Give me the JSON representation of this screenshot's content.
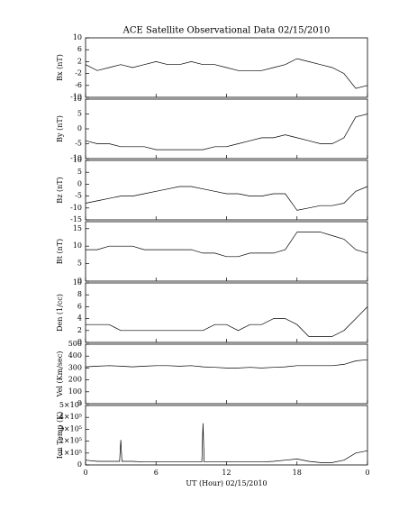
{
  "chart_data": [
    {
      "type": "line",
      "title": "ACE Satellite Observational Data   02/15/2010",
      "ylabel": "Bx (nT)",
      "xlim": [
        0,
        24
      ],
      "ylim": [
        -10,
        10
      ],
      "yticks": [
        10,
        6,
        2,
        -2,
        -6,
        -10
      ],
      "x": [
        0,
        1,
        2,
        3,
        4,
        5,
        6,
        7,
        8,
        9,
        10,
        11,
        12,
        13,
        14,
        15,
        16,
        17,
        18,
        19,
        20,
        21,
        22,
        23,
        24
      ],
      "values": [
        1,
        -1,
        0,
        1,
        0,
        1,
        2,
        1,
        1,
        2,
        1,
        1,
        0,
        -1,
        -1,
        -1,
        0,
        1,
        3,
        2,
        1,
        0,
        -2,
        -7,
        -6
      ]
    },
    {
      "type": "line",
      "ylabel": "By (nT)",
      "xlim": [
        0,
        24
      ],
      "ylim": [
        -10,
        10
      ],
      "yticks": [
        10,
        5,
        0,
        -5,
        -10
      ],
      "x": [
        0,
        1,
        2,
        3,
        4,
        5,
        6,
        7,
        8,
        9,
        10,
        11,
        12,
        13,
        14,
        15,
        16,
        17,
        18,
        19,
        20,
        21,
        22,
        23,
        24
      ],
      "values": [
        -4,
        -5,
        -5,
        -6,
        -6,
        -6,
        -7,
        -7,
        -7,
        -7,
        -7,
        -6,
        -6,
        -5,
        -4,
        -3,
        -3,
        -2,
        -3,
        -4,
        -5,
        -5,
        -3,
        4,
        5
      ]
    },
    {
      "type": "line",
      "ylabel": "Bz (nT)",
      "xlim": [
        0,
        24
      ],
      "ylim": [
        -15,
        10
      ],
      "yticks": [
        10,
        5,
        0,
        -5,
        -10,
        -15
      ],
      "x": [
        0,
        1,
        2,
        3,
        4,
        5,
        6,
        7,
        8,
        9,
        10,
        11,
        12,
        13,
        14,
        15,
        16,
        17,
        18,
        19,
        20,
        21,
        22,
        23,
        24
      ],
      "values": [
        -8,
        -7,
        -6,
        -5,
        -5,
        -4,
        -3,
        -2,
        -1,
        -1,
        -2,
        -3,
        -4,
        -4,
        -5,
        -5,
        -4,
        -4,
        -11,
        -10,
        -9,
        -9,
        -8,
        -3,
        -1
      ]
    },
    {
      "type": "line",
      "ylabel": "Bt (nT)",
      "xlim": [
        0,
        24
      ],
      "ylim": [
        0,
        17
      ],
      "yticks": [
        15,
        10,
        5,
        0
      ],
      "x": [
        0,
        1,
        2,
        3,
        4,
        5,
        6,
        7,
        8,
        9,
        10,
        11,
        12,
        13,
        14,
        15,
        16,
        17,
        18,
        19,
        20,
        21,
        22,
        23,
        24
      ],
      "values": [
        9,
        9,
        10,
        10,
        10,
        9,
        9,
        9,
        9,
        9,
        8,
        8,
        7,
        7,
        8,
        8,
        8,
        9,
        14,
        14,
        14,
        13,
        12,
        9,
        8
      ]
    },
    {
      "type": "line",
      "ylabel": "Den (1/cc)",
      "xlim": [
        0,
        24
      ],
      "ylim": [
        0,
        10
      ],
      "yticks": [
        10,
        8,
        6,
        4,
        2,
        0
      ],
      "x": [
        0,
        1,
        2,
        3,
        4,
        5,
        6,
        7,
        8,
        9,
        10,
        11,
        12,
        13,
        14,
        15,
        16,
        17,
        18,
        19,
        20,
        21,
        22,
        23,
        24
      ],
      "values": [
        3,
        3,
        3,
        2,
        2,
        2,
        2,
        2,
        2,
        2,
        2,
        3,
        3,
        2,
        3,
        3,
        4,
        4,
        3,
        1,
        1,
        1,
        2,
        4,
        6
      ]
    },
    {
      "type": "line",
      "ylabel": "Vel (Km/sec)",
      "xlim": [
        0,
        24
      ],
      "ylim": [
        0,
        500
      ],
      "yticks": [
        500,
        400,
        300,
        200,
        100,
        0
      ],
      "x": [
        0,
        1,
        2,
        3,
        4,
        5,
        6,
        7,
        8,
        9,
        10,
        11,
        12,
        13,
        14,
        15,
        16,
        17,
        18,
        19,
        20,
        21,
        22,
        23,
        24
      ],
      "values": [
        310,
        315,
        320,
        315,
        310,
        315,
        320,
        320,
        315,
        320,
        310,
        305,
        300,
        300,
        305,
        300,
        305,
        310,
        320,
        320,
        320,
        320,
        330,
        360,
        370
      ]
    },
    {
      "type": "line",
      "ylabel": "Ion Temp (K)",
      "xlabel": "UT (Hour)  02/15/2010",
      "xlim": [
        0,
        24
      ],
      "ylim": [
        0,
        500000
      ],
      "yticks": [
        {
          "value": 500000,
          "label": "5×10⁵"
        },
        {
          "value": 400000,
          "label": "4×10⁵"
        },
        {
          "value": 300000,
          "label": "3×10⁵"
        },
        {
          "value": 200000,
          "label": "2×10⁵"
        },
        {
          "value": 100000,
          "label": "1×10⁵"
        },
        0
      ],
      "xticks": [
        0,
        6,
        12,
        18,
        {
          "value": 24,
          "label": "0"
        }
      ],
      "x": [
        0,
        1,
        2,
        2.9,
        3,
        3.1,
        4,
        5,
        6,
        7,
        8,
        9,
        9.9,
        10,
        10.1,
        11,
        12,
        13,
        14,
        15,
        16,
        17,
        18,
        19,
        20,
        21,
        22,
        23,
        24
      ],
      "values": [
        40000,
        30000,
        30000,
        30000,
        210000,
        30000,
        30000,
        25000,
        25000,
        25000,
        25000,
        25000,
        25000,
        350000,
        25000,
        25000,
        25000,
        25000,
        25000,
        25000,
        30000,
        40000,
        50000,
        30000,
        20000,
        20000,
        40000,
        100000,
        120000
      ]
    }
  ]
}
